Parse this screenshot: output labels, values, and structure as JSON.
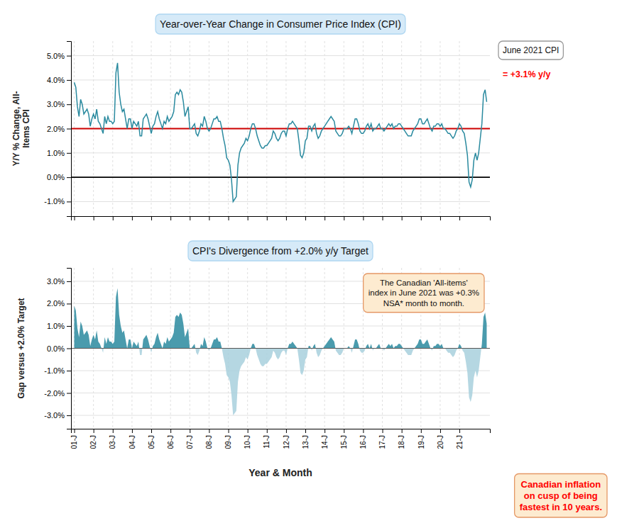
{
  "chart_data": [
    {
      "type": "line",
      "title": "Year-over-Year Change in Consumer Price Index (CPI)",
      "ylabel": "Y/Y % Change, All-\nItems CPI",
      "categories": [
        "01-J",
        null,
        null,
        null,
        null,
        null,
        null,
        null,
        null,
        null,
        null,
        null,
        "02-J",
        null,
        null,
        null,
        null,
        null,
        null,
        null,
        null,
        null,
        null,
        null,
        "03-J",
        null,
        null,
        null,
        null,
        null,
        null,
        null,
        null,
        null,
        null,
        null,
        "04-J",
        null,
        null,
        null,
        null,
        null,
        null,
        null,
        null,
        null,
        null,
        null,
        "05-J",
        null,
        null,
        null,
        null,
        null,
        null,
        null,
        null,
        null,
        null,
        null,
        "06-J",
        null,
        null,
        null,
        null,
        null,
        null,
        null,
        null,
        null,
        null,
        null,
        "07-J",
        null,
        null,
        null,
        null,
        null,
        null,
        null,
        null,
        null,
        null,
        null,
        "08-J",
        null,
        null,
        null,
        null,
        null,
        null,
        null,
        null,
        null,
        null,
        null,
        "09-J",
        null,
        null,
        null,
        null,
        null,
        null,
        null,
        null,
        null,
        null,
        null,
        "10-J",
        null,
        null,
        null,
        null,
        null,
        null,
        null,
        null,
        null,
        null,
        null,
        "11-J",
        null,
        null,
        null,
        null,
        null,
        null,
        null,
        null,
        null,
        null,
        null,
        "12-J",
        null,
        null,
        null,
        null,
        null,
        null,
        null,
        null,
        null,
        null,
        null,
        "13-J",
        null,
        null,
        null,
        null,
        null,
        null,
        null,
        null,
        null,
        null,
        null,
        "14-J",
        null,
        null,
        null,
        null,
        null,
        null,
        null,
        null,
        null,
        null,
        null,
        "15-J",
        null,
        null,
        null,
        null,
        null,
        null,
        null,
        null,
        null,
        null,
        null,
        "16-J",
        null,
        null,
        null,
        null,
        null,
        null,
        null,
        null,
        null,
        null,
        null,
        "17-J",
        null,
        null,
        null,
        null,
        null,
        null,
        null,
        null,
        null,
        null,
        null,
        "18-J",
        null,
        null,
        null,
        null,
        null,
        null,
        null,
        null,
        null,
        null,
        null,
        "19-J",
        null,
        null,
        null,
        null,
        null,
        null,
        null,
        null,
        null,
        null,
        null,
        "20-J",
        null,
        null,
        null,
        null,
        null,
        null,
        null,
        null,
        null,
        null,
        null,
        "21-J",
        null,
        null,
        null,
        null,
        null,
        null,
        null,
        null,
        null,
        null,
        null,
        null,
        null,
        null,
        null,
        null,
        null
      ],
      "values": [
        3.9,
        3.7,
        2.9,
        2.5,
        3.2,
        3.0,
        2.6,
        2.7,
        2.8,
        2.6,
        2.1,
        2.4,
        2.6,
        2.4,
        2.8,
        2.3,
        2.2,
        2.0,
        1.8,
        2.5,
        2.2,
        2.5,
        2.3,
        2.3,
        2.2,
        2.3,
        4.3,
        4.7,
        3.5,
        3.0,
        2.7,
        2.8,
        2.4,
        2.0,
        2.4,
        2.4,
        2.0,
        2.3,
        2.2,
        2.1,
        2.3,
        1.7,
        1.7,
        2.4,
        2.5,
        2.6,
        2.4,
        2.1,
        1.8,
        2.1,
        2.2,
        2.5,
        2.7,
        2.4,
        2.2,
        2.0,
        2.3,
        2.2,
        2.5,
        2.3,
        2.4,
        2.5,
        2.7,
        3.4,
        3.5,
        3.4,
        3.6,
        3.5,
        3.1,
        2.5,
        2.7,
        2.9,
        2.0,
        2.0,
        2.1,
        2.2,
        1.8,
        1.7,
        1.9,
        2.2,
        2.1,
        2.5,
        2.3,
        2.0,
        1.9,
        2.0,
        2.2,
        2.4,
        2.4,
        2.5,
        2.3,
        2.3,
        2.0,
        1.6,
        1.3,
        0.8,
        0.7,
        0.5,
        -0.1,
        -1.0,
        -0.9,
        -0.8,
        0.5,
        1.0,
        1.2,
        1.3,
        1.4,
        1.6,
        1.5,
        1.7,
        2.0,
        2.2,
        2.2,
        2.0,
        1.7,
        1.5,
        1.3,
        1.2,
        1.2,
        1.3,
        1.3,
        1.4,
        1.5,
        1.6,
        1.9,
        1.8,
        1.6,
        1.5,
        1.6,
        1.8,
        1.9,
        1.9,
        1.7,
        2.0,
        2.2,
        2.2,
        2.3,
        2.2,
        2.1,
        2.0,
        1.5,
        0.9,
        0.8,
        1.0,
        1.5,
        1.6,
        2.1,
        2.1,
        1.9,
        2.1,
        2.2,
        1.8,
        1.6,
        1.7,
        1.9,
        2.0,
        2.1,
        2.2,
        2.3,
        2.4,
        2.5,
        2.4,
        2.3,
        1.9,
        1.8,
        1.7,
        1.7,
        1.8,
        2.0,
        2.0,
        2.0,
        2.1,
        2.0,
        1.8,
        2.1,
        2.4,
        2.4,
        2.2,
        1.9,
        1.8,
        1.8,
        1.9,
        2.1,
        2.2,
        2.0,
        2.2,
        1.9,
        2.0,
        2.0,
        2.1,
        2.2,
        2.0,
        2.0,
        1.9,
        2.0,
        2.1,
        2.2,
        2.1,
        2.2,
        2.0,
        2.1,
        2.1,
        2.2,
        2.2,
        2.1,
        2.0,
        1.9,
        1.8,
        1.7,
        1.7,
        1.7,
        1.9,
        2.0,
        2.1,
        2.2,
        2.4,
        2.4,
        2.2,
        2.2,
        2.3,
        2.4,
        2.2,
        2.0,
        1.9,
        2.1,
        2.1,
        2.2,
        2.2,
        2.1,
        2.2,
        2.0,
        2.0,
        1.9,
        1.8,
        1.8,
        1.7,
        1.6,
        1.7,
        1.9,
        2.0,
        2.2,
        2.1,
        1.9,
        1.8,
        1.4,
        0.9,
        -0.2,
        -0.4,
        -0.1,
        0.7,
        1.0,
        0.7,
        1.0,
        1.6,
        2.2,
        3.4,
        3.6,
        3.1
      ],
      "color": "#2a8a9f",
      "hlines": [
        {
          "value": 2.0,
          "color": "#cc0000"
        },
        {
          "value": 0.0,
          "color": "#000000"
        }
      ],
      "ylim": [
        -1.6,
        5.6
      ],
      "yticks": [
        {
          "value": -1.0,
          "label": "-1.0%"
        },
        {
          "value": 0.0,
          "label": "0.0%"
        },
        {
          "value": 1.0,
          "label": "1.0%"
        },
        {
          "value": 2.0,
          "label": "2.0%"
        },
        {
          "value": 3.0,
          "label": "3.0%"
        },
        {
          "value": 4.0,
          "label": "4.0%"
        },
        {
          "value": 5.0,
          "label": "5.0%"
        }
      ],
      "grid": true,
      "tick_labels": "y",
      "annotations": [
        {
          "text": "June 2021 CPI"
        },
        {
          "text": "= +3.1% y/y",
          "color": "red"
        }
      ]
    },
    {
      "type": "area",
      "title": "CPI's Divergence from +2.0% y/y Target",
      "xlabel": "Year & Month",
      "ylabel": "Gap versus +2.0% Target",
      "categories": [
        "01-J",
        null,
        null,
        null,
        null,
        null,
        null,
        null,
        null,
        null,
        null,
        null,
        "02-J",
        null,
        null,
        null,
        null,
        null,
        null,
        null,
        null,
        null,
        null,
        null,
        "03-J",
        null,
        null,
        null,
        null,
        null,
        null,
        null,
        null,
        null,
        null,
        null,
        "04-J",
        null,
        null,
        null,
        null,
        null,
        null,
        null,
        null,
        null,
        null,
        null,
        "05-J",
        null,
        null,
        null,
        null,
        null,
        null,
        null,
        null,
        null,
        null,
        null,
        "06-J",
        null,
        null,
        null,
        null,
        null,
        null,
        null,
        null,
        null,
        null,
        null,
        "07-J",
        null,
        null,
        null,
        null,
        null,
        null,
        null,
        null,
        null,
        null,
        null,
        "08-J",
        null,
        null,
        null,
        null,
        null,
        null,
        null,
        null,
        null,
        null,
        null,
        "09-J",
        null,
        null,
        null,
        null,
        null,
        null,
        null,
        null,
        null,
        null,
        null,
        "10-J",
        null,
        null,
        null,
        null,
        null,
        null,
        null,
        null,
        null,
        null,
        null,
        "11-J",
        null,
        null,
        null,
        null,
        null,
        null,
        null,
        null,
        null,
        null,
        null,
        "12-J",
        null,
        null,
        null,
        null,
        null,
        null,
        null,
        null,
        null,
        null,
        null,
        "13-J",
        null,
        null,
        null,
        null,
        null,
        null,
        null,
        null,
        null,
        null,
        null,
        "14-J",
        null,
        null,
        null,
        null,
        null,
        null,
        null,
        null,
        null,
        null,
        null,
        "15-J",
        null,
        null,
        null,
        null,
        null,
        null,
        null,
        null,
        null,
        null,
        null,
        "16-J",
        null,
        null,
        null,
        null,
        null,
        null,
        null,
        null,
        null,
        null,
        null,
        "17-J",
        null,
        null,
        null,
        null,
        null,
        null,
        null,
        null,
        null,
        null,
        null,
        "18-J",
        null,
        null,
        null,
        null,
        null,
        null,
        null,
        null,
        null,
        null,
        null,
        "19-J",
        null,
        null,
        null,
        null,
        null,
        null,
        null,
        null,
        null,
        null,
        null,
        "20-J",
        null,
        null,
        null,
        null,
        null,
        null,
        null,
        null,
        null,
        null,
        null,
        "21-J",
        null,
        null,
        null,
        null,
        null,
        null,
        null,
        null,
        null,
        null,
        null,
        null,
        null,
        null,
        null,
        null,
        null
      ],
      "values": [
        1.9,
        1.7,
        0.9,
        0.5,
        1.2,
        1.0,
        0.6,
        0.7,
        0.8,
        0.6,
        0.1,
        0.4,
        0.6,
        0.4,
        0.8,
        0.3,
        0.2,
        0.0,
        -0.2,
        0.5,
        0.2,
        0.5,
        0.3,
        0.3,
        0.2,
        0.3,
        2.3,
        2.7,
        1.5,
        1.0,
        0.7,
        0.8,
        0.4,
        0.0,
        0.4,
        0.4,
        0.0,
        0.3,
        0.2,
        0.1,
        0.3,
        -0.3,
        -0.3,
        0.4,
        0.5,
        0.6,
        0.4,
        0.1,
        -0.2,
        0.1,
        0.2,
        0.5,
        0.7,
        0.4,
        0.2,
        0.0,
        0.3,
        0.2,
        0.5,
        0.3,
        0.4,
        0.5,
        0.7,
        1.4,
        1.5,
        1.4,
        1.6,
        1.5,
        1.1,
        0.5,
        0.7,
        0.9,
        0.0,
        0.0,
        0.1,
        0.2,
        -0.2,
        -0.3,
        -0.1,
        0.2,
        0.1,
        0.5,
        0.3,
        0.0,
        -0.1,
        0.0,
        0.2,
        0.4,
        0.4,
        0.5,
        0.3,
        0.3,
        0.0,
        -0.4,
        -0.7,
        -1.2,
        -1.3,
        -1.5,
        -2.1,
        -3.0,
        -2.9,
        -2.8,
        -1.5,
        -1.0,
        -0.8,
        -0.7,
        -0.6,
        -0.4,
        -0.5,
        -0.3,
        0.0,
        0.2,
        0.2,
        0.0,
        -0.3,
        -0.5,
        -0.7,
        -0.8,
        -0.8,
        -0.7,
        -0.7,
        -0.6,
        -0.5,
        -0.4,
        -0.1,
        -0.2,
        -0.4,
        -0.5,
        -0.4,
        -0.2,
        -0.1,
        -0.1,
        -0.3,
        0.0,
        0.2,
        0.2,
        0.3,
        0.2,
        0.1,
        0.0,
        -0.5,
        -1.1,
        -1.2,
        -1.0,
        -0.5,
        -0.4,
        0.1,
        0.1,
        -0.1,
        0.1,
        0.2,
        -0.2,
        -0.4,
        -0.3,
        -0.1,
        0.0,
        0.1,
        0.2,
        0.3,
        0.4,
        0.5,
        0.4,
        0.3,
        -0.1,
        -0.2,
        -0.3,
        -0.3,
        -0.2,
        0.0,
        0.0,
        0.0,
        0.1,
        0.0,
        -0.2,
        0.1,
        0.4,
        0.4,
        0.2,
        -0.1,
        -0.2,
        -0.2,
        -0.1,
        0.1,
        0.2,
        0.0,
        0.2,
        -0.1,
        0.0,
        0.0,
        0.1,
        0.2,
        0.0,
        0.0,
        -0.1,
        0.0,
        0.1,
        0.2,
        0.1,
        0.2,
        0.0,
        0.1,
        0.1,
        0.2,
        0.2,
        0.1,
        0.0,
        -0.1,
        -0.2,
        -0.3,
        -0.3,
        -0.3,
        -0.1,
        0.0,
        0.1,
        0.2,
        0.4,
        0.4,
        0.2,
        0.2,
        0.3,
        0.4,
        0.2,
        0.0,
        -0.1,
        0.1,
        0.1,
        0.2,
        0.2,
        0.1,
        0.2,
        0.0,
        0.0,
        -0.1,
        -0.2,
        -0.2,
        -0.3,
        -0.4,
        -0.3,
        -0.1,
        0.0,
        0.2,
        0.1,
        -0.1,
        -0.2,
        -0.6,
        -1.1,
        -2.2,
        -2.4,
        -2.1,
        -1.3,
        -1.0,
        -1.3,
        -1.0,
        -0.4,
        0.2,
        1.4,
        1.6,
        1.1
      ],
      "colors": [
        "#2a8a9f",
        "#a8d0dd"
      ],
      "ylim": [
        -3.6,
        3.6
      ],
      "yticks": [
        {
          "value": -3.0,
          "label": "-3.0%"
        },
        {
          "value": -2.0,
          "label": "-2.0%"
        },
        {
          "value": -1.0,
          "label": "-1.0%"
        },
        {
          "value": 0.0,
          "label": "0.0%"
        },
        {
          "value": 1.0,
          "label": "1.0%"
        },
        {
          "value": 2.0,
          "label": "2.0%"
        },
        {
          "value": 3.0,
          "label": "3.0%"
        }
      ],
      "grid": true,
      "annotations": [
        {
          "text": "The Canadian 'All-items'\nindex in June 2021 was +0.3%\nNSA* month to month."
        },
        {
          "text": "Canadian inflation\non cusp of being\nfastest in 10 years.",
          "color": "red"
        }
      ]
    }
  ]
}
